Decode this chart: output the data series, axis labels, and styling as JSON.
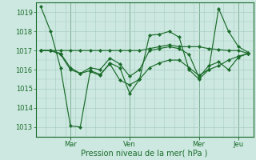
{
  "xlabel": "Pression niveau de la mer( hPa )",
  "ylim": [
    1012.5,
    1019.5
  ],
  "yticks": [
    1013,
    1014,
    1015,
    1016,
    1017,
    1018,
    1019
  ],
  "background_color": "#cce8e0",
  "grid_color": "#aaccC4",
  "line_color": "#1a6b2a",
  "xtick_labels": [
    "Mar",
    "Ven",
    "Mer",
    "Jeu"
  ],
  "series1": [
    1019.3,
    1018.0,
    1016.1,
    1013.05,
    1013.0,
    1015.9,
    1015.7,
    1016.35,
    1016.1,
    1014.75,
    1015.5,
    1017.8,
    1017.85,
    1018.0,
    1017.7,
    1016.0,
    1015.5,
    1016.0,
    1019.2,
    1018.0,
    1017.2,
    1016.9
  ],
  "series2": [
    1017.0,
    1017.0,
    1017.0,
    1017.0,
    1017.0,
    1017.0,
    1017.0,
    1017.0,
    1017.0,
    1017.0,
    1017.0,
    1017.1,
    1017.2,
    1017.3,
    1017.2,
    1017.2,
    1017.2,
    1017.1,
    1017.05,
    1017.0,
    1017.0,
    1016.85
  ],
  "series3": [
    1017.0,
    1017.0,
    1016.8,
    1016.0,
    1015.8,
    1015.95,
    1015.75,
    1016.3,
    1015.45,
    1015.2,
    1015.5,
    1016.1,
    1016.35,
    1016.5,
    1016.5,
    1016.1,
    1015.7,
    1016.0,
    1016.2,
    1016.5,
    1016.7,
    1016.85
  ],
  "series4": [
    1017.0,
    1017.0,
    1016.85,
    1016.1,
    1015.8,
    1016.1,
    1016.0,
    1016.6,
    1016.3,
    1015.65,
    1016.0,
    1017.0,
    1017.1,
    1017.2,
    1017.1,
    1016.8,
    1015.6,
    1016.2,
    1016.4,
    1016.0,
    1016.65,
    1016.85
  ],
  "n_points": 22,
  "xtick_x_positions": [
    3,
    9,
    16,
    20
  ],
  "xlabel_fontsize": 7,
  "ytick_fontsize": 6,
  "xtick_fontsize": 6
}
